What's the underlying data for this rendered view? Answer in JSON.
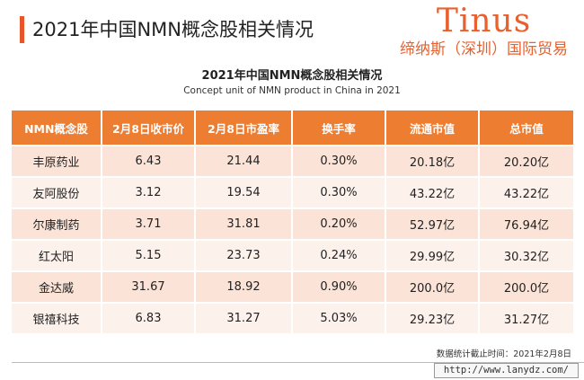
{
  "page_title": "2021年中国NMN概念股相关情况",
  "brand": {
    "name": "Tinus",
    "subtitle": "缔纳斯（深圳）国际贸易"
  },
  "table": {
    "title": "2021年中国NMN概念股相关情况",
    "subtitle": "Concept unit of NMN product in China in 2021",
    "headers": [
      "NMN概念股",
      "2月8日收市价",
      "2月8日市盈率",
      "换手率",
      "流通市值",
      "总市值"
    ],
    "rows": [
      [
        "丰原药业",
        "6.43",
        "21.44",
        "0.30%",
        "20.18亿",
        "20.20亿"
      ],
      [
        "友阿股份",
        "3.12",
        "19.54",
        "0.30%",
        "43.22亿",
        "43.22亿"
      ],
      [
        "尔康制药",
        "3.71",
        "31.81",
        "0.20%",
        "52.97亿",
        "76.94亿"
      ],
      [
        "红太阳",
        "5.15",
        "23.73",
        "0.24%",
        "29.99亿",
        "30.32亿"
      ],
      [
        "金达威",
        "31.67",
        "18.92",
        "0.90%",
        "200.0亿",
        "200.0亿"
      ],
      [
        "银禧科技",
        "6.83",
        "31.27",
        "5.03%",
        "29.23亿",
        "31.27亿"
      ]
    ]
  },
  "footnote": "数据统计截止时间：2021年2月8日",
  "watermark_url": "http://www.lanydz.com/",
  "colors": {
    "accent": "#ed7d31",
    "row_odd": "#fbe3d7",
    "row_even": "#fdf1eb",
    "brand": "#e8602e"
  }
}
